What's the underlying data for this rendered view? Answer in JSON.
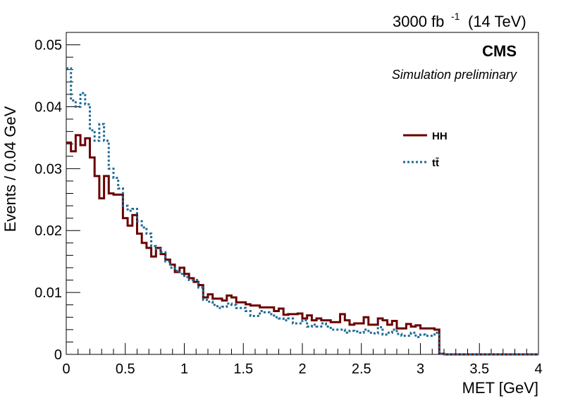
{
  "chart_data": {
    "type": "line",
    "style": "step-histogram",
    "header_right": "3000 fb⁻¹ (14 TeV)",
    "header_luminosity": "3000 fb",
    "header_luminosity_exp": "-1",
    "header_energy": "(14 TeV)",
    "experiment": "CMS",
    "experiment_sub": "Simulation preliminary",
    "xlabel": "MET [GeV]",
    "ylabel": "Events / 0.04 GeV",
    "xlim": [
      0,
      4
    ],
    "ylim": [
      0,
      0.052
    ],
    "bin_width": 0.04,
    "x_ticks": [
      0,
      0.5,
      1,
      1.5,
      2,
      2.5,
      3,
      3.5,
      4
    ],
    "x_tick_labels": [
      "0",
      "0.5",
      "1",
      "1.5",
      "2",
      "2.5",
      "3",
      "3.5",
      "4"
    ],
    "y_ticks": [
      0,
      0.01,
      0.02,
      0.03,
      0.04,
      0.05
    ],
    "y_tick_labels": [
      "0",
      "0.01",
      "0.02",
      "0.03",
      "0.04",
      "0.05"
    ],
    "grid": false,
    "legend_position": "upper-right",
    "series": [
      {
        "name": "HH",
        "color": "#6b0000",
        "dash": "solid",
        "values": [
          0.0342,
          0.0328,
          0.0354,
          0.0338,
          0.0349,
          0.0318,
          0.0288,
          0.0252,
          0.0288,
          0.026,
          0.0258,
          0.0258,
          0.022,
          0.0208,
          0.0225,
          0.0195,
          0.018,
          0.0172,
          0.0158,
          0.0172,
          0.0162,
          0.0153,
          0.0145,
          0.0133,
          0.014,
          0.013,
          0.0123,
          0.0117,
          0.0112,
          0.0092,
          0.0097,
          0.009,
          0.009,
          0.0087,
          0.0095,
          0.0092,
          0.0084,
          0.0084,
          0.0081,
          0.0079,
          0.0079,
          0.0076,
          0.0076,
          0.0076,
          0.007,
          0.0074,
          0.0064,
          0.0065,
          0.0065,
          0.0066,
          0.0058,
          0.0063,
          0.0055,
          0.0058,
          0.0055,
          0.0055,
          0.0052,
          0.0052,
          0.0065,
          0.0055,
          0.0048,
          0.005,
          0.005,
          0.006,
          0.0048,
          0.0048,
          0.0058,
          0.0055,
          0.0048,
          0.0054,
          0.0042,
          0.0042,
          0.0049,
          0.0045,
          0.0047,
          0.0042,
          0.0042,
          0.0042,
          0.004,
          0.0001,
          0,
          0,
          0,
          0,
          0,
          0,
          0,
          0,
          0,
          0,
          0,
          0,
          0,
          0,
          0,
          0,
          0,
          0,
          0,
          0
        ]
      },
      {
        "name": "tt̄",
        "color": "#1d6a96",
        "dash": "dotted",
        "values": [
          0.0462,
          0.041,
          0.04,
          0.0422,
          0.0404,
          0.0362,
          0.0345,
          0.0372,
          0.0345,
          0.03,
          0.0285,
          0.0268,
          0.024,
          0.0232,
          0.0235,
          0.0215,
          0.0205,
          0.0195,
          0.0175,
          0.017,
          0.0165,
          0.015,
          0.014,
          0.0135,
          0.013,
          0.0125,
          0.012,
          0.012,
          0.0108,
          0.0088,
          0.0085,
          0.008,
          0.0075,
          0.0077,
          0.0082,
          0.008,
          0.0075,
          0.0075,
          0.007,
          0.0062,
          0.0062,
          0.007,
          0.0068,
          0.0065,
          0.006,
          0.0058,
          0.0055,
          0.0058,
          0.005,
          0.005,
          0.0055,
          0.0045,
          0.0048,
          0.0045,
          0.005,
          0.0045,
          0.004,
          0.004,
          0.004,
          0.0035,
          0.0038,
          0.0037,
          0.0035,
          0.004,
          0.0035,
          0.0034,
          0.0044,
          0.0032,
          0.0035,
          0.004,
          0.0033,
          0.003,
          0.003,
          0.0035,
          0.0028,
          0.0032,
          0.003,
          0.003,
          0.0035,
          0.0001,
          0,
          0,
          0,
          0,
          0,
          0,
          0,
          0,
          0,
          0,
          0,
          0,
          0,
          0,
          0,
          0,
          0,
          0,
          0,
          0
        ]
      }
    ]
  }
}
